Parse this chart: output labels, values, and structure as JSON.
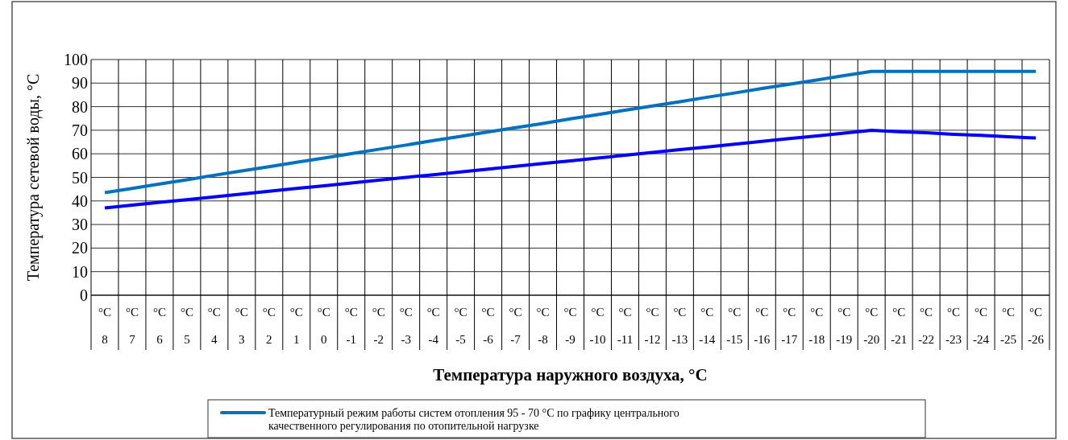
{
  "chart_data": {
    "type": "line",
    "xlabel": "Температура наружного воздуха, °С",
    "ylabel": "Температура сетевой воды, °С",
    "categories": [
      "°C 8",
      "°C 7",
      "°C 6",
      "°C 5",
      "°C 4",
      "°C 3",
      "°C 2",
      "°C 1",
      "°C 0",
      "°C -1",
      "°C -2",
      "°C -3",
      "°C -4",
      "°C -5",
      "°C -6",
      "°C -7",
      "°C -8",
      "°C -9",
      "°C -10",
      "°C -11",
      "°C -12",
      "°C -13",
      "°C -14",
      "°C -15",
      "°C -16",
      "°C -17",
      "°C -18",
      "°C -19",
      "°C -20",
      "°C -21",
      "°C -22",
      "°C -23",
      "°C -24",
      "°C -25",
      "°C -26"
    ],
    "series": [
      {
        "name": "Температурный режим работы систем отопления 95 - 70 °С по графику центрального качественного регулирования по отопительной нагрузке",
        "color": "#0070c0",
        "values": [
          43.5,
          45.3,
          47.2,
          49,
          50.9,
          52.7,
          54.5,
          56.4,
          58.2,
          60.1,
          61.9,
          63.7,
          65.6,
          67.4,
          69.3,
          71.1,
          72.9,
          74.8,
          76.6,
          78.5,
          80.3,
          82.1,
          84,
          85.8,
          87.7,
          89.5,
          91.3,
          93.2,
          95,
          95,
          95,
          95,
          95,
          95,
          95
        ]
      },
      {
        "color": "#0000ff",
        "values": [
          37,
          38.2,
          39.4,
          40.5,
          41.7,
          42.9,
          44.1,
          45.3,
          46.4,
          47.6,
          48.8,
          50,
          51.1,
          52.3,
          53.5,
          54.7,
          55.9,
          57,
          58.2,
          59.4,
          60.6,
          61.8,
          62.9,
          64.1,
          65.3,
          66.5,
          67.6,
          68.8,
          70,
          69.4,
          68.9,
          68.3,
          67.8,
          67.2,
          66.7
        ]
      }
    ],
    "ylim": [
      0,
      100
    ],
    "yticks": [
      0,
      10,
      20,
      30,
      40,
      50,
      60,
      70,
      80,
      90,
      100
    ],
    "grid": true,
    "legend": "bottom",
    "marker": "none",
    "line_style": "solid"
  }
}
